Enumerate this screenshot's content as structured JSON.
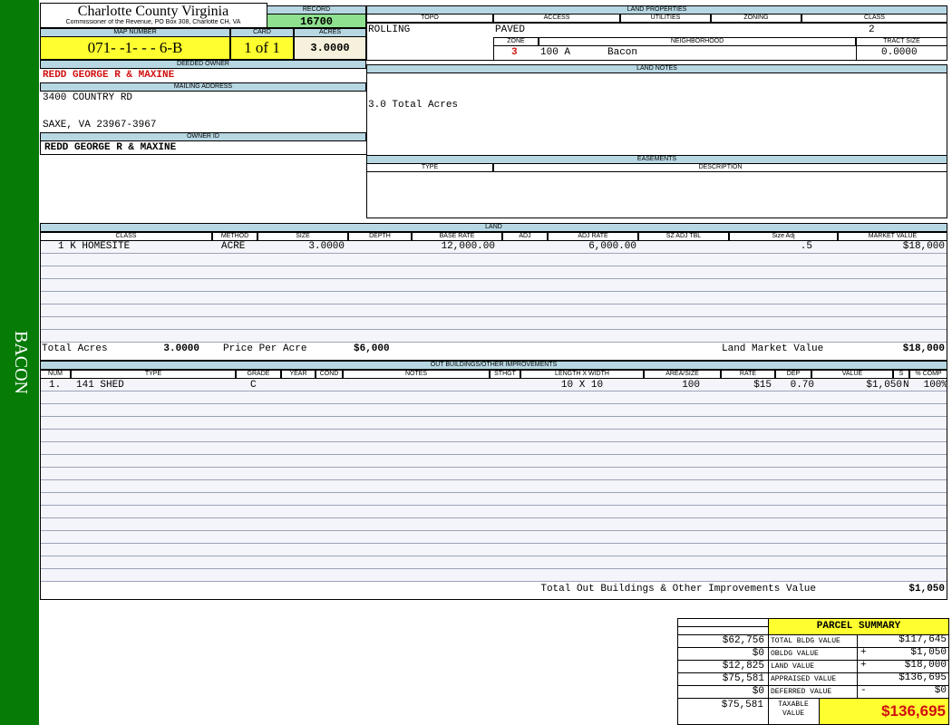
{
  "side_label": "BACON",
  "header": {
    "county": "Charlotte County Virginia",
    "office": "Commissioner of the Revenue, PO Box 308, Charlotte CH, VA",
    "record_label": "RECORD",
    "record": "16700"
  },
  "map": {
    "map_number_label": "MAP NUMBER",
    "map_number": "071- -1- - - 6-B",
    "card_label": "CARD",
    "card": "1 of 1",
    "acres_label": "ACRES",
    "acres": "3.0000"
  },
  "owner": {
    "deeded_owner_label": "DEEDED OWNER",
    "deeded_owner": "REDD GEORGE R & MAXINE",
    "mailing_label": "MAILING ADDRESS",
    "address_line1": "3400 COUNTRY RD",
    "address_line2": "SAXE, VA 23967-3967",
    "owner_id_label": "OWNER ID",
    "owner_id": "REDD GEORGE R & MAXINE"
  },
  "land_properties": {
    "title": "LAND PROPERTIES",
    "headers": [
      "TOPO",
      "ACCESS",
      "UTILITIES",
      "ZONING",
      "CLASS"
    ],
    "topo": "ROLLING",
    "access": "PAVED",
    "class": "2",
    "zone_label": "ZONE",
    "neighborhood_label": "NEIGHBORHOOD",
    "tract_label": "TRACT SIZE",
    "zone": "3",
    "neighborhood_code": "100 A",
    "neighborhood": "Bacon",
    "tract": "0.0000"
  },
  "land_notes": {
    "title": "LAND NOTES",
    "text": "3.0 Total Acres"
  },
  "easements": {
    "title": "EASEMENTS",
    "headers": [
      "TYPE",
      "DESCRIPTION"
    ]
  },
  "land": {
    "title": "LAND",
    "headers": [
      "CLASS",
      "METHOD",
      "SIZE",
      "DEPTH",
      "BASE RATE",
      "ADJ",
      "ADJ RATE",
      "SZ ADJ TBL",
      "Size Adj",
      "MARKET VALUE"
    ],
    "rows": [
      {
        "class": "1 K HOMESITE",
        "method": "ACRE",
        "size": "3.0000",
        "base_rate": "12,000.00",
        "adj_rate": "6,000.00",
        "size_adj": ".5",
        "market_value": "$18,000"
      }
    ],
    "total_acres_label": "Total Acres",
    "total_acres": "3.0000",
    "price_label": "Price Per Acre",
    "price": "$6,000",
    "market_label": "Land Market Value",
    "market": "$18,000"
  },
  "outbuildings": {
    "title": "OUT BUILDINGS/OTHER IMPROVEMENTS",
    "headers": [
      "NUM",
      "TYPE",
      "GRADE",
      "YEAR",
      "COND",
      "NOTES",
      "STHGT",
      "LENGTH X WIDTH",
      "AREA/SIZE",
      "RATE",
      "DEP",
      "VALUE",
      "S",
      "% COMP"
    ],
    "rows": [
      {
        "num": "1.",
        "type": "141 SHED",
        "grade": "C",
        "lxw": "10 X 10",
        "area": "100",
        "rate": "$15",
        "dep": "0.70",
        "value": "$1,050",
        "s": "N",
        "comp": "100%"
      }
    ],
    "total_label": "Total Out Buildings & Other Improvements Value",
    "total": "$1,050"
  },
  "summary": {
    "title": "PARCEL SUMMARY",
    "rows": [
      {
        "prior": "$62,756",
        "label": "TOTAL BLDG VALUE",
        "value": "$117,645"
      },
      {
        "prior": "$0",
        "label": "OBLDG VALUE",
        "sign": "+",
        "value": "$1,050"
      },
      {
        "prior": "$12,825",
        "label": "LAND VALUE",
        "sign": "+",
        "value": "$18,000"
      },
      {
        "prior": "$75,581",
        "label": "APPRAISED VALUE",
        "value": "$136,695"
      },
      {
        "prior": "$0",
        "label": "DEFERRED VALUE",
        "sign": "-",
        "value": "$0"
      }
    ],
    "taxable_prior": "$75,581",
    "taxable_label": "TAXABLE VALUE",
    "taxable": "$136,695"
  }
}
